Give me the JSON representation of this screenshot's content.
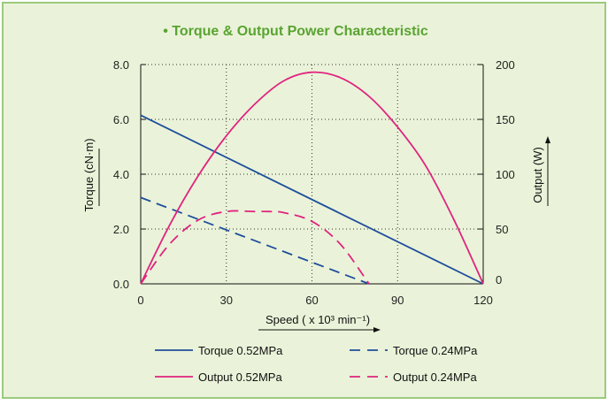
{
  "colors": {
    "background": "#eaf3d9",
    "border": "#9cc97d",
    "title": "#5aa332",
    "torque": "#1f4e9c",
    "output": "#e0247f",
    "grid": "#333333"
  },
  "chart_data": {
    "type": "line",
    "title": "• Torque & Output Power Characteristic",
    "xlabel": "Speed ( x 10³ min⁻¹)",
    "ylabel_left": "Torque (cN·m)",
    "ylabel_right": "Output (W)",
    "xlim": [
      0,
      120
    ],
    "ylim_left": [
      0,
      8
    ],
    "ylim_right": [
      0,
      200
    ],
    "x_ticks": [
      "0",
      "30",
      "60",
      "90",
      "120"
    ],
    "y_left_ticks": [
      "0.0",
      "2.0",
      "4.0",
      "6.0",
      "8.0"
    ],
    "y_right_ticks": [
      "0",
      "50",
      "100",
      "150",
      "200"
    ],
    "grid": "dotted",
    "legend_position": "bottom",
    "series": [
      {
        "name": "Torque 0.52MPa",
        "axis": "left",
        "style": "solid",
        "color": "#1f4e9c",
        "x": [
          0,
          120
        ],
        "y": [
          6.15,
          0
        ]
      },
      {
        "name": "Torque 0.24MPa",
        "axis": "left",
        "style": "dashed",
        "color": "#1f4e9c",
        "x": [
          0,
          80
        ],
        "y": [
          3.15,
          0
        ]
      },
      {
        "name": "Output 0.52MPa",
        "axis": "right",
        "style": "solid",
        "color": "#e0247f",
        "x": [
          0,
          10,
          20,
          30,
          40,
          50,
          60,
          70,
          80,
          90,
          100,
          110,
          120
        ],
        "y": [
          0,
          53,
          98,
          135,
          164,
          185,
          193,
          188,
          171,
          143,
          107,
          57,
          0
        ]
      },
      {
        "name": "Output 0.24MPa",
        "axis": "right",
        "style": "dashed",
        "color": "#e0247f",
        "x": [
          0,
          10,
          20,
          30,
          40,
          45,
          50,
          60,
          70,
          80
        ],
        "y": [
          0,
          36,
          58,
          66,
          66,
          66,
          65,
          57,
          36,
          0
        ]
      }
    ]
  }
}
